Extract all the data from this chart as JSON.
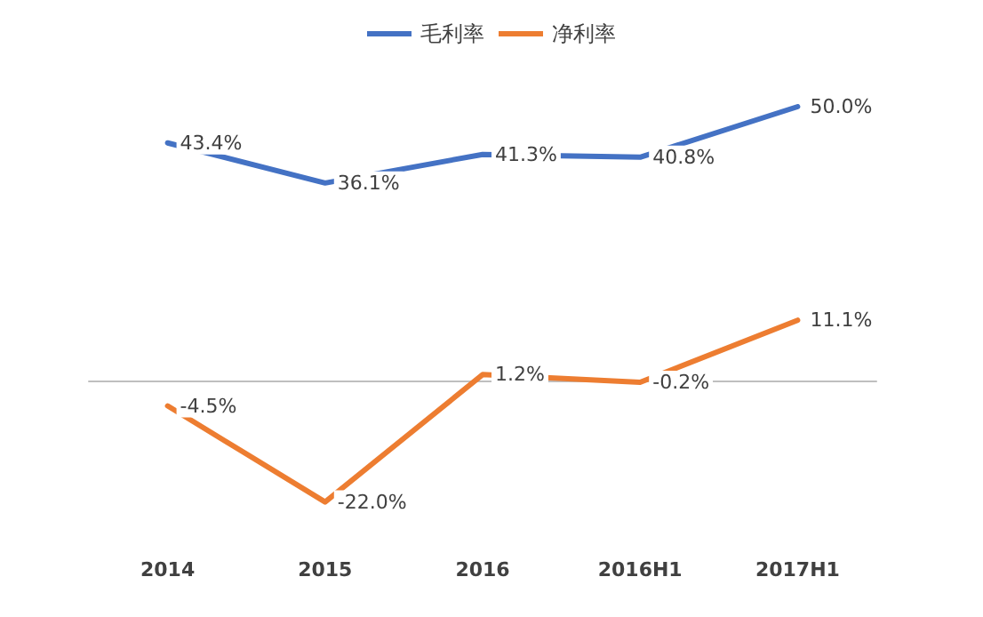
{
  "chart_data": {
    "type": "line",
    "categories": [
      "2014",
      "2015",
      "2016",
      "2016H1",
      "2017H1"
    ],
    "series": [
      {
        "name": "毛利率",
        "color": "#4472c4",
        "values": [
          43.4,
          36.1,
          41.3,
          40.8,
          50.0
        ],
        "value_labels": [
          "43.4%",
          "36.1%",
          "41.3%",
          "40.8%",
          "50.0%"
        ]
      },
      {
        "name": "净利率",
        "color": "#ed7d31",
        "values": [
          -4.5,
          -22.0,
          1.2,
          -0.2,
          11.1
        ],
        "value_labels": [
          "-4.5%",
          "-22.0%",
          "1.2%",
          "-0.2%",
          "11.1%"
        ]
      }
    ],
    "legend": "top",
    "marker": "none",
    "line_style": "solid"
  }
}
